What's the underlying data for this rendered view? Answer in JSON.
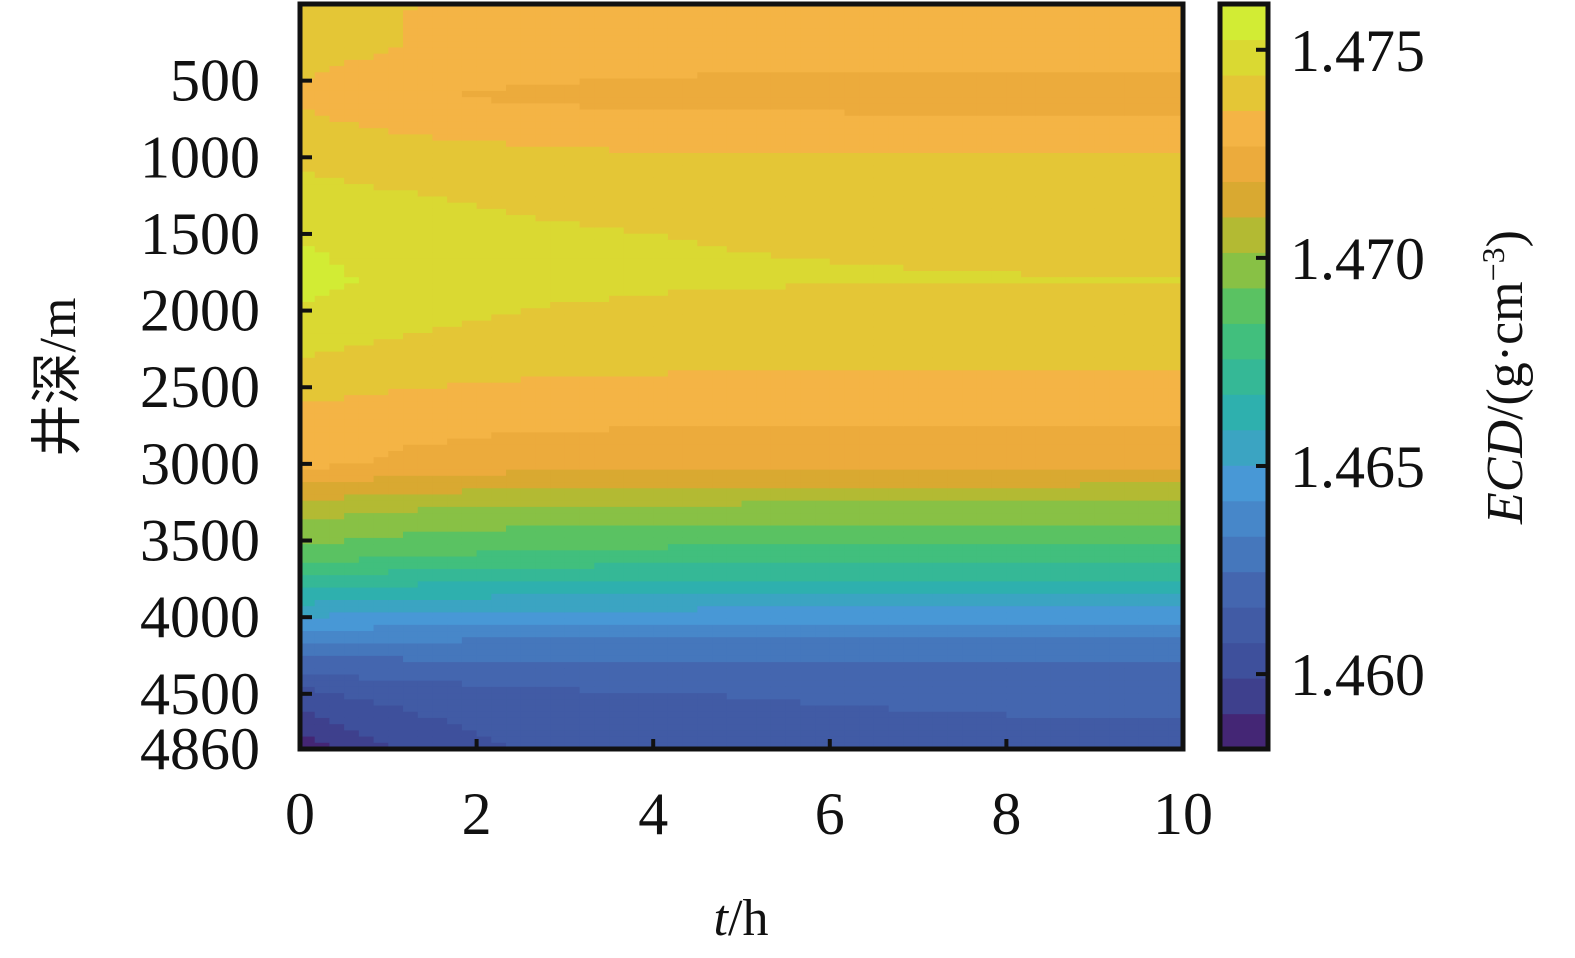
{
  "chart_data": {
    "type": "heatmap",
    "title": "",
    "xlabel_italic": "t",
    "xlabel_unit": "/h",
    "ylabel": "井深/m",
    "colorbar_label_italic": "ECD",
    "colorbar_label_unit": "/(g·cm",
    "colorbar_label_sup": "−3",
    "colorbar_label_close": ")",
    "xlim": [
      0,
      10
    ],
    "ylim": [
      4860,
      0
    ],
    "x_ticks": [
      0,
      2,
      4,
      6,
      8,
      10
    ],
    "x_tick_labels": [
      "0",
      "2",
      "4",
      "6",
      "8",
      "10"
    ],
    "y_ticks": [
      500,
      1000,
      1500,
      2000,
      2500,
      3000,
      3500,
      4000,
      4500,
      4860
    ],
    "y_tick_labels": [
      "500",
      "1000",
      "1500",
      "2000",
      "2500",
      "3000",
      "3500",
      "4000",
      "4500",
      "4860"
    ],
    "colorbar_range": [
      1.4582,
      1.4761
    ],
    "colorbar_ticks": [
      1.46,
      1.465,
      1.47,
      1.475
    ],
    "colorbar_tick_labels": [
      "1.460",
      "1.465",
      "1.470",
      "1.475"
    ],
    "colorscale": "viridis-like (purple → blue → teal → green → yellow → orange)",
    "depth_profile": {
      "depth": [
        0,
        300,
        600,
        900,
        1200,
        1500,
        1800,
        2100,
        2400,
        2700,
        3000,
        3300,
        3600,
        3900,
        4200,
        4500,
        4860
      ],
      "ecd_at_t0": [
        1.4738,
        1.474,
        1.4733,
        1.4741,
        1.4746,
        1.4752,
        1.4756,
        1.475,
        1.4742,
        1.4733,
        1.473,
        1.4705,
        1.469,
        1.466,
        1.463,
        1.4605,
        1.4585
      ],
      "ecd_at_t10": [
        1.4733,
        1.473,
        1.4723,
        1.4733,
        1.4741,
        1.4743,
        1.4744,
        1.474,
        1.4735,
        1.4728,
        1.472,
        1.4698,
        1.468,
        1.4654,
        1.4628,
        1.4617,
        1.4615
      ]
    }
  }
}
